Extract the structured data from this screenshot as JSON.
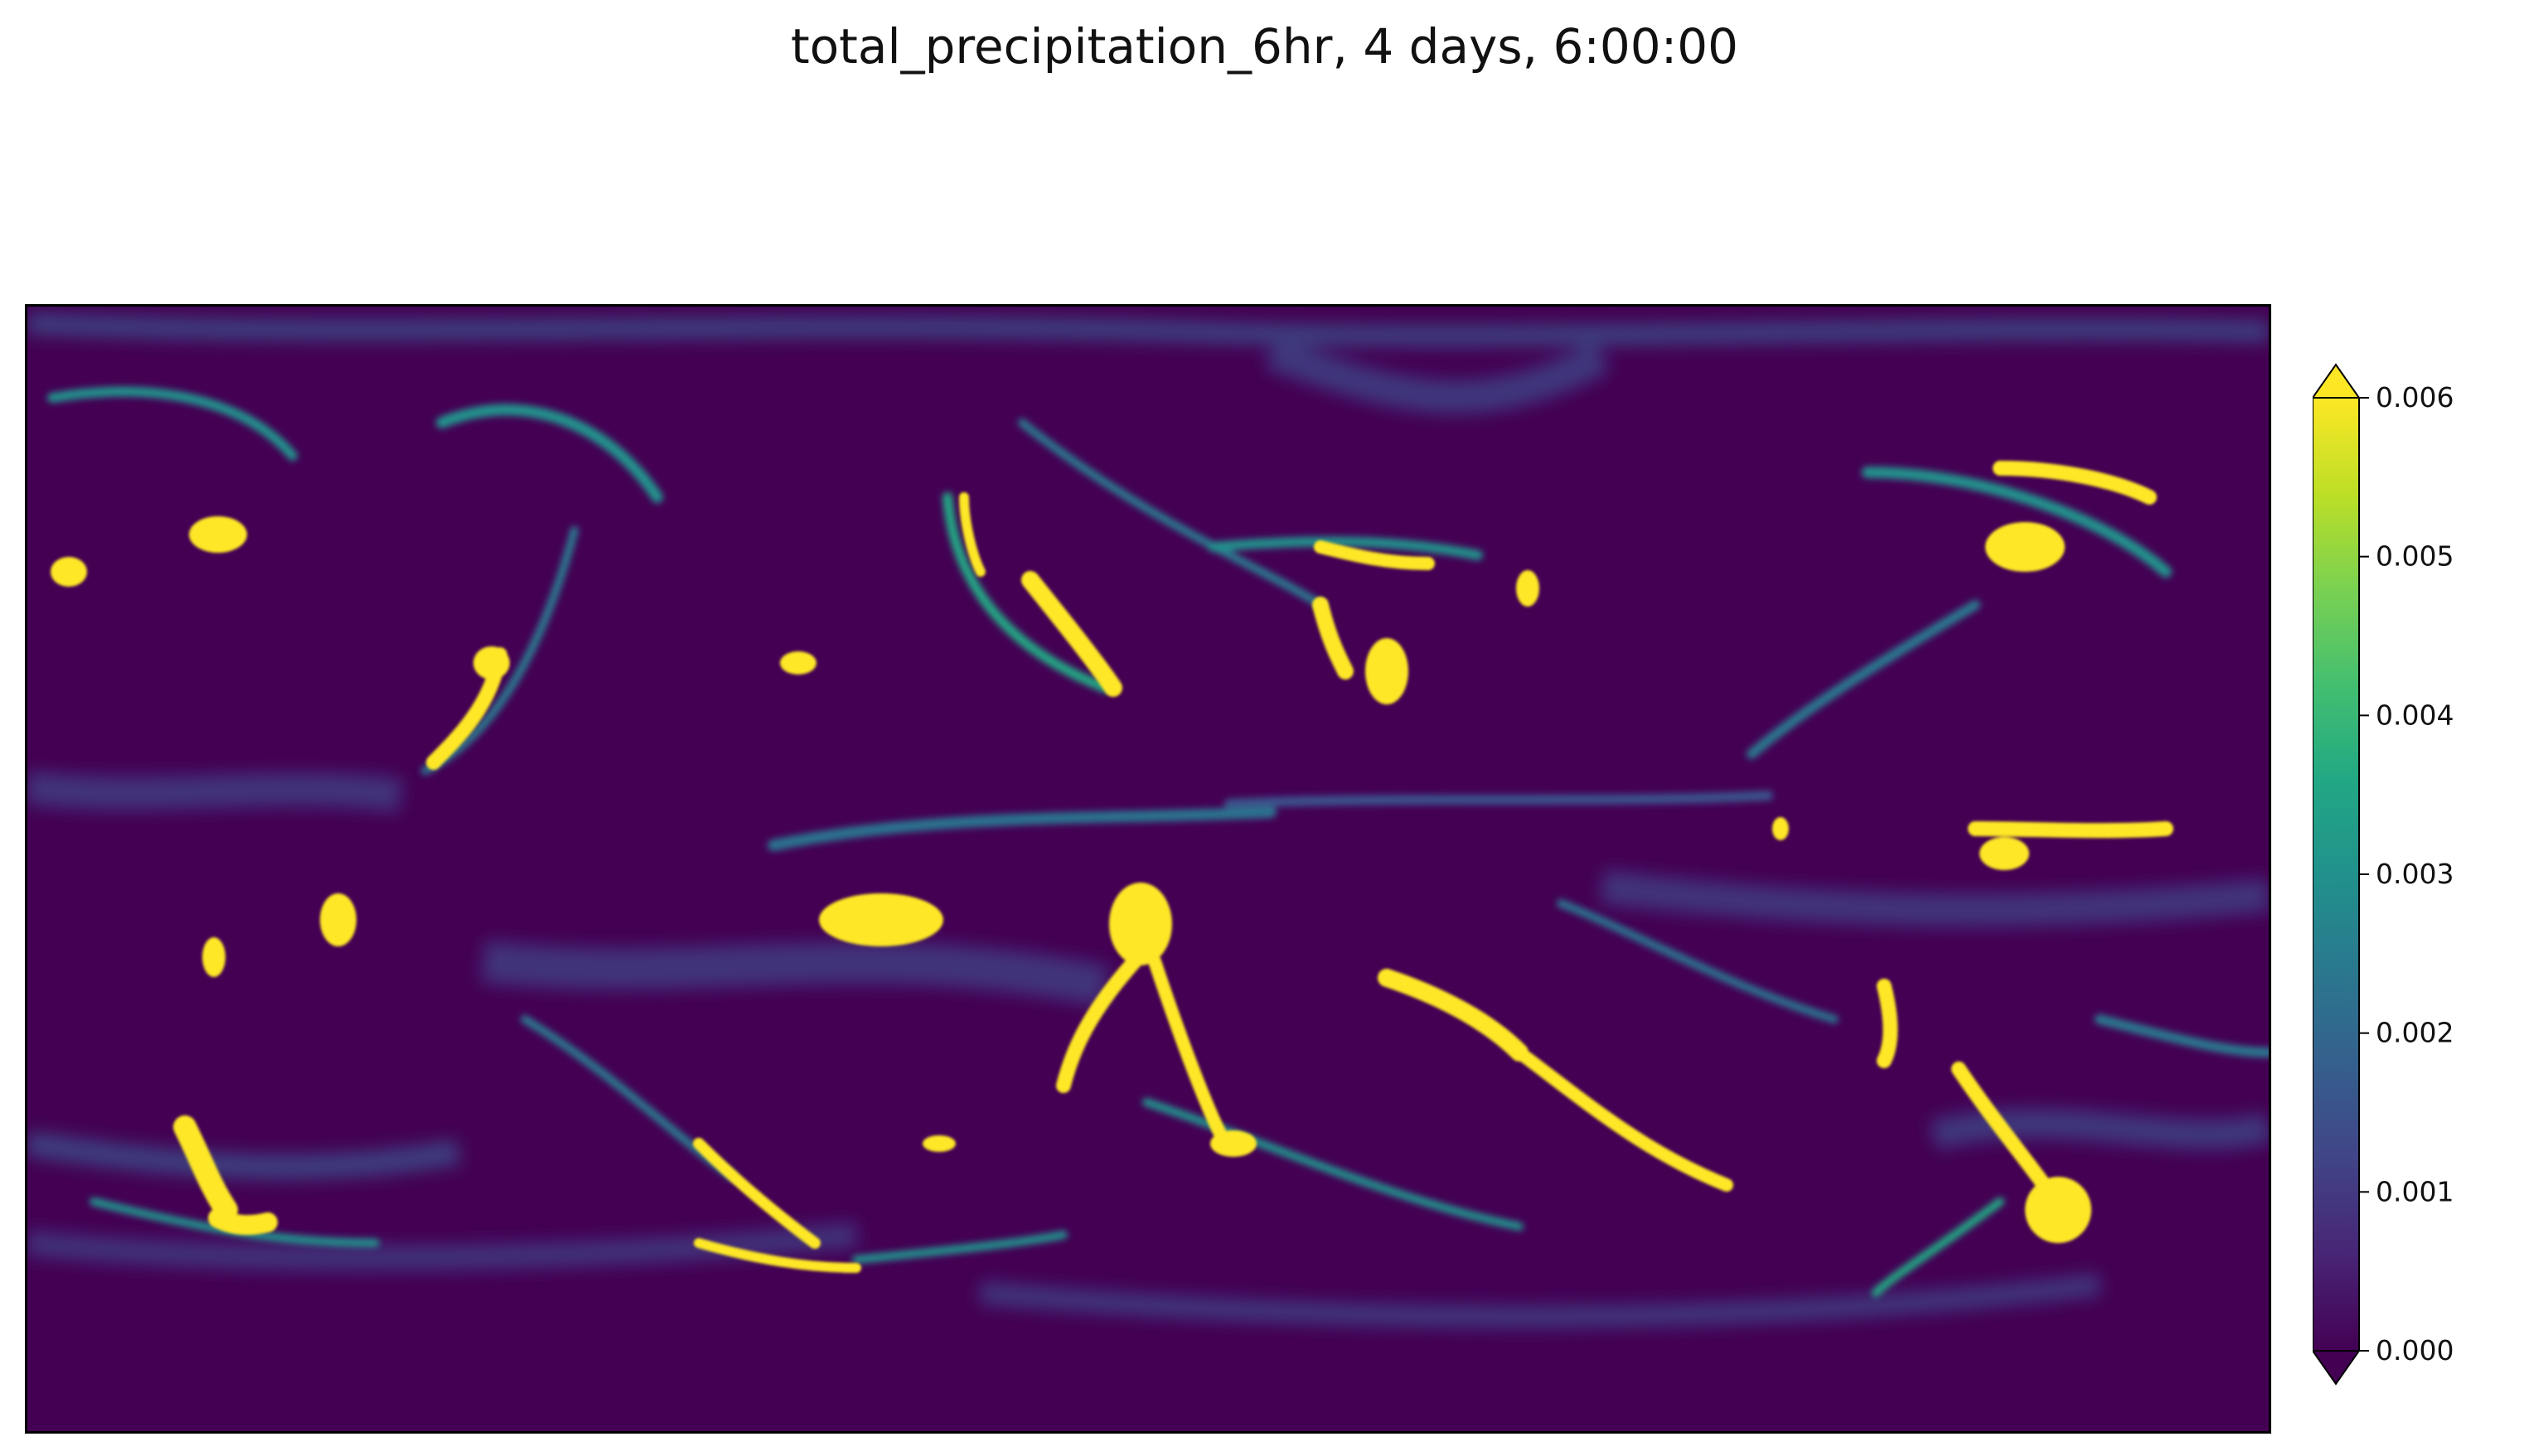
{
  "chart_data": {
    "type": "heatmap",
    "title": "total_precipitation_6hr, 4 days, 6:00:00",
    "xlabel": "",
    "ylabel": "",
    "axes_ticks": false,
    "colormap": "viridis",
    "colorbar": {
      "vmin": 0.0,
      "vmax": 0.006,
      "extend": "both",
      "placement": "right",
      "ticks": [
        0.0,
        0.001,
        0.002,
        0.003,
        0.004,
        0.005,
        0.006
      ],
      "tick_labels": [
        "0.000",
        "0.001",
        "0.002",
        "0.003",
        "0.004",
        "0.005",
        "0.006"
      ]
    },
    "field": {
      "grid": "global lat-lon, longitude left to right, latitude top (north) to bottom (south)",
      "background_value": 0.0,
      "features": [
        {
          "lon_frac": 0.08,
          "lat_frac": 0.18,
          "value": 0.006,
          "shape": "blob"
        },
        {
          "lon_frac": 0.2,
          "lat_frac": 0.12,
          "value": 0.002,
          "shape": "arc"
        },
        {
          "lon_frac": 0.2,
          "lat_frac": 0.35,
          "value": 0.006,
          "shape": "streak"
        },
        {
          "lon_frac": 0.33,
          "lat_frac": 0.55,
          "value": 0.005,
          "shape": "cluster"
        },
        {
          "lon_frac": 0.38,
          "lat_frac": 0.54,
          "value": 0.006,
          "shape": "cluster"
        },
        {
          "lon_frac": 0.42,
          "lat_frac": 0.24,
          "value": 0.006,
          "shape": "blob"
        },
        {
          "lon_frac": 0.48,
          "lat_frac": 0.56,
          "value": 0.006,
          "shape": "blob"
        },
        {
          "lon_frac": 0.52,
          "lat_frac": 0.64,
          "value": 0.006,
          "shape": "streak"
        },
        {
          "lon_frac": 0.58,
          "lat_frac": 0.26,
          "value": 0.006,
          "shape": "blob"
        },
        {
          "lon_frac": 0.6,
          "lat_frac": 0.4,
          "value": 0.005,
          "shape": "cluster"
        },
        {
          "lon_frac": 0.64,
          "lat_frac": 0.62,
          "value": 0.006,
          "shape": "streak"
        },
        {
          "lon_frac": 0.7,
          "lat_frac": 0.8,
          "value": 0.006,
          "shape": "band"
        },
        {
          "lon_frac": 0.82,
          "lat_frac": 0.64,
          "value": 0.006,
          "shape": "cluster"
        },
        {
          "lon_frac": 0.88,
          "lat_frac": 0.18,
          "value": 0.006,
          "shape": "blob"
        },
        {
          "lon_frac": 0.9,
          "lat_frac": 0.48,
          "value": 0.006,
          "shape": "band"
        },
        {
          "lon_frac": 0.89,
          "lat_frac": 0.82,
          "value": 0.006,
          "shape": "blob"
        },
        {
          "lon_frac": 0.08,
          "lat_frac": 0.79,
          "value": 0.006,
          "shape": "blob"
        },
        {
          "lon_frac": 0.3,
          "lat_frac": 0.85,
          "value": 0.005,
          "shape": "band"
        },
        {
          "lon_frac": 0.5,
          "lat_frac": 0.05,
          "value": 0.001,
          "shape": "haze"
        },
        {
          "lon_frac": 0.5,
          "lat_frac": 0.95,
          "value": 0.001,
          "shape": "haze"
        }
      ]
    }
  }
}
